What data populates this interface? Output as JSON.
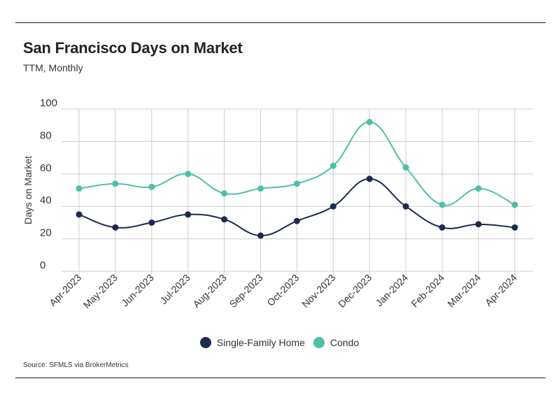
{
  "header": {
    "title": "San Francisco Days on Market",
    "subtitle": "TTM, Monthly"
  },
  "footer": {
    "source": "Source:  SFMLS via BrokerMetrics"
  },
  "colors": {
    "single_family": "#1b2a4e",
    "condo": "#4dbfa8",
    "grid": "#cccccc"
  },
  "chart_data": {
    "type": "line",
    "title": "San Francisco Days on Market",
    "subtitle": "TTM, Monthly",
    "xlabel": "",
    "ylabel": "Days on Market",
    "ylim": [
      0,
      100
    ],
    "yticks": [
      0,
      20,
      40,
      60,
      80,
      100
    ],
    "grid": true,
    "legend": "bottom-center",
    "categories": [
      "Apr-2023",
      "May-2023",
      "Jun-2023",
      "Jul-2023",
      "Aug-2023",
      "Sep-2023",
      "Oct-2023",
      "Nov-2023",
      "Dec-2023",
      "Jan-2024",
      "Feb-2024",
      "Mar-2024",
      "Apr-2024"
    ],
    "series": [
      {
        "name": "Single-Family Home",
        "color": "#1b2a4e",
        "values": [
          35,
          27,
          30,
          35,
          32,
          22,
          31,
          40,
          57,
          40,
          27,
          29,
          27
        ]
      },
      {
        "name": "Condo",
        "color": "#4dbfa8",
        "values": [
          51,
          54,
          52,
          60,
          48,
          51,
          54,
          65,
          92,
          64,
          41,
          51,
          41
        ]
      }
    ]
  }
}
